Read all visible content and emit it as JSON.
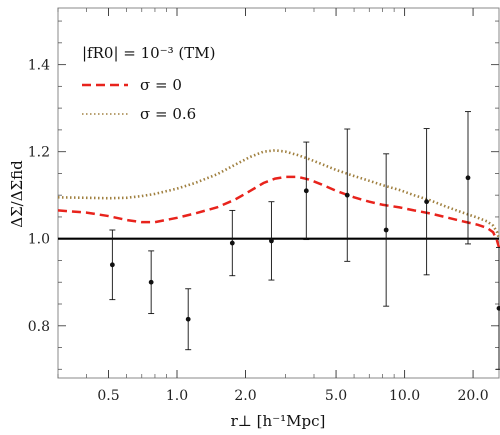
{
  "chart_data": {
    "type": "line",
    "xscale": "log",
    "xlim": [
      0.3,
      26
    ],
    "ylim": [
      0.68,
      1.53
    ],
    "xlabel": "r⊥ [h⁻¹Mpc]",
    "ylabel": "ΔΣ/ΔΣfid",
    "xticks": [
      0.5,
      1.0,
      2.0,
      5.0,
      10.0,
      20.0
    ],
    "xtick_labels": [
      "0.5",
      "1.0",
      "2.0",
      "5.0",
      "10.0",
      "20.0"
    ],
    "yticks": [
      0.8,
      1.0,
      1.2,
      1.4
    ],
    "ytick_labels": [
      "0.8",
      "1.0",
      "1.2",
      "1.4"
    ],
    "legend": {
      "title": "|fR0| = 10⁻³ (TM)",
      "placement": "top-left"
    },
    "reference_line": {
      "y": 1.0,
      "color": "#000000"
    },
    "series": [
      {
        "name": "σ = 0",
        "style": "dashed",
        "color": "#e8231c",
        "x": [
          0.3,
          0.4,
          0.5,
          0.6,
          0.7,
          0.8,
          1.0,
          1.2,
          1.5,
          1.8,
          2.1,
          2.4,
          2.7,
          3.0,
          3.4,
          3.8,
          4.3,
          5.0,
          6.0,
          7.0,
          8.0,
          9.5,
          11.0,
          13.0,
          15.0,
          18.0,
          21.0,
          23.0,
          24.5,
          25.5,
          26.0
        ],
        "y": [
          1.065,
          1.06,
          1.052,
          1.043,
          1.038,
          1.038,
          1.048,
          1.058,
          1.072,
          1.09,
          1.11,
          1.128,
          1.138,
          1.142,
          1.142,
          1.136,
          1.125,
          1.11,
          1.095,
          1.085,
          1.078,
          1.072,
          1.065,
          1.058,
          1.05,
          1.04,
          1.032,
          1.025,
          1.015,
          0.995,
          0.98
        ]
      },
      {
        "name": "σ = 0.6",
        "style": "dotted",
        "color": "#a08040",
        "x": [
          0.3,
          0.4,
          0.5,
          0.6,
          0.7,
          0.8,
          1.0,
          1.2,
          1.5,
          1.8,
          2.1,
          2.4,
          2.7,
          3.0,
          3.4,
          3.8,
          4.3,
          5.0,
          6.0,
          7.0,
          8.0,
          9.5,
          11.0,
          13.0,
          15.0,
          18.0,
          21.0,
          23.0,
          24.5,
          25.5,
          26.0
        ],
        "y": [
          1.095,
          1.094,
          1.093,
          1.094,
          1.098,
          1.103,
          1.115,
          1.128,
          1.148,
          1.17,
          1.188,
          1.2,
          1.203,
          1.2,
          1.192,
          1.183,
          1.172,
          1.158,
          1.144,
          1.133,
          1.123,
          1.112,
          1.1,
          1.088,
          1.075,
          1.06,
          1.048,
          1.04,
          1.03,
          1.015,
          1.0
        ]
      }
    ],
    "data_points": {
      "x": [
        0.52,
        0.77,
        1.12,
        1.75,
        2.6,
        3.7,
        5.6,
        8.3,
        12.5,
        19.0,
        26.0
      ],
      "y": [
        0.94,
        0.9,
        0.815,
        0.99,
        0.995,
        1.11,
        1.1,
        1.02,
        1.085,
        1.14,
        0.84
      ],
      "yerr": [
        0.08,
        0.072,
        0.07,
        0.075,
        0.09,
        0.112,
        0.152,
        0.175,
        0.168,
        0.152,
        0.14
      ]
    }
  }
}
